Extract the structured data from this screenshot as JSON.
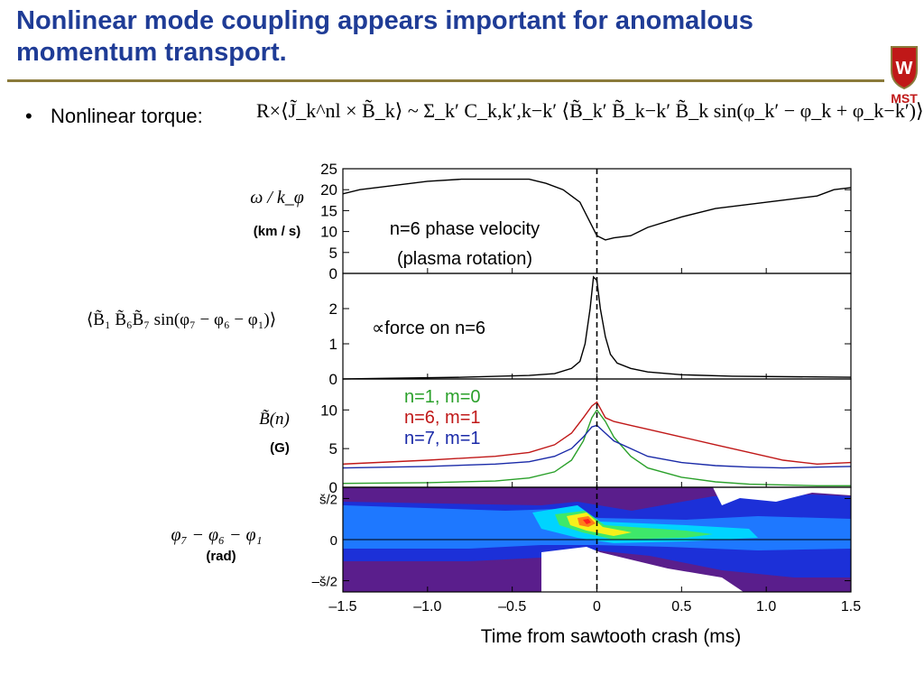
{
  "slide": {
    "title": "Nonlinear mode coupling appears important for anomalous momentum transport.",
    "bullet_label": "Nonlinear torque:",
    "torque_formula": "R×⟨J̃_k^nl × B̃_k⟩ ~ Σ_k′ C_k,k′,k−k′ ⟨B̃_k′ B̃_k−k′ B̃_k sin(φ_k′ − φ_k + φ_k−k′)⟩",
    "logo_text": "MST",
    "logo_letter": "W"
  },
  "colors": {
    "title": "#1f3c96",
    "n1": "#2aa02a",
    "n6": "#c01818",
    "n7": "#1a2aa8",
    "bg_plot": "#5a1e8c"
  },
  "panel_labels": {
    "p1_quantity": "ω / k_φ",
    "p1_unit": "(km / s)",
    "p2_quantity": "⟨B̃₁ B̃₆B̃₇ sin(φ₇ − φ₆ − φ₁)⟩",
    "p3_quantity": "B̃(n)",
    "p3_unit": "(G)",
    "p4_quantity": "φ₇ − φ₆ − φ₁",
    "p4_unit": "(rad)"
  },
  "chart_data": [
    {
      "type": "line",
      "panel": "plasma rotation",
      "annotations": [
        "n=6 phase velocity",
        "(plasma rotation)"
      ],
      "ylim": [
        0,
        25
      ],
      "yticks": [
        "25",
        "20",
        "15",
        "10",
        "5",
        "0"
      ],
      "series": [
        {
          "x": [
            -1.5,
            -1.4,
            -1.2,
            -1.0,
            -0.8,
            -0.6,
            -0.4,
            -0.3,
            -0.2,
            -0.1,
            -0.05,
            0.0,
            0.05,
            0.1,
            0.2,
            0.3,
            0.5,
            0.7,
            0.9,
            1.1,
            1.3,
            1.4,
            1.5
          ],
          "y": [
            19,
            20,
            21,
            22,
            22.5,
            22.5,
            22.5,
            21.5,
            20,
            17,
            13,
            9,
            8,
            8.5,
            9,
            11,
            13.5,
            15.5,
            16.5,
            17.5,
            18.5,
            20,
            20.5
          ]
        }
      ]
    },
    {
      "type": "line",
      "panel": "force",
      "annotations": [
        "∝force on n=6"
      ],
      "ylim": [
        0,
        3
      ],
      "yticks": [
        "2",
        "1",
        "0"
      ],
      "series": [
        {
          "x": [
            -1.5,
            -0.8,
            -0.4,
            -0.25,
            -0.15,
            -0.1,
            -0.07,
            -0.04,
            -0.02,
            0.0,
            0.02,
            0.05,
            0.08,
            0.12,
            0.2,
            0.3,
            0.5,
            0.8,
            1.5
          ],
          "y": [
            0,
            0.05,
            0.1,
            0.15,
            0.3,
            0.5,
            1.0,
            2.0,
            2.9,
            2.8,
            2.0,
            1.2,
            0.7,
            0.45,
            0.3,
            0.2,
            0.12,
            0.08,
            0.05
          ]
        }
      ]
    },
    {
      "type": "line",
      "panel": "mode amplitudes",
      "ylim": [
        0,
        14
      ],
      "yticks": [
        "10",
        "5",
        "0"
      ],
      "x": [
        -1.5,
        -1.0,
        -0.6,
        -0.4,
        -0.25,
        -0.15,
        -0.08,
        -0.03,
        0.0,
        0.05,
        0.1,
        0.2,
        0.3,
        0.5,
        0.7,
        0.9,
        1.1,
        1.3,
        1.5
      ],
      "series": [
        {
          "name": "n=1, m=0",
          "color_key": "n1",
          "values": [
            0.5,
            0.6,
            0.8,
            1.2,
            2.0,
            3.5,
            6.0,
            9.0,
            10.0,
            8.5,
            6.5,
            4.0,
            2.5,
            1.3,
            0.7,
            0.4,
            0.3,
            0.2,
            0.2
          ]
        },
        {
          "name": "n=6, m=1",
          "color_key": "n6",
          "values": [
            3.0,
            3.5,
            4.0,
            4.5,
            5.5,
            7.0,
            9.0,
            10.5,
            11.0,
            9.0,
            8.5,
            8.0,
            7.5,
            6.5,
            5.5,
            4.5,
            3.5,
            3.0,
            3.2
          ]
        },
        {
          "name": "n=7, m=1",
          "color_key": "n7",
          "values": [
            2.5,
            2.7,
            3.0,
            3.3,
            4.0,
            5.0,
            6.5,
            7.8,
            8.0,
            7.0,
            6.0,
            5.0,
            4.0,
            3.2,
            2.8,
            2.6,
            2.5,
            2.6,
            2.7
          ]
        }
      ]
    },
    {
      "type": "heatmap",
      "panel": "phase distribution",
      "ylim": [
        -2,
        2
      ],
      "yticks": [
        "š/2",
        "0",
        "–š/2"
      ],
      "xlim": [
        -1.5,
        1.5
      ],
      "xticks": [
        "–1.5",
        "–1.0",
        "–0.5",
        "0",
        "0.5",
        "1.0",
        "1.5"
      ],
      "xlabel": "Time from sawtooth crash (ms)"
    }
  ]
}
